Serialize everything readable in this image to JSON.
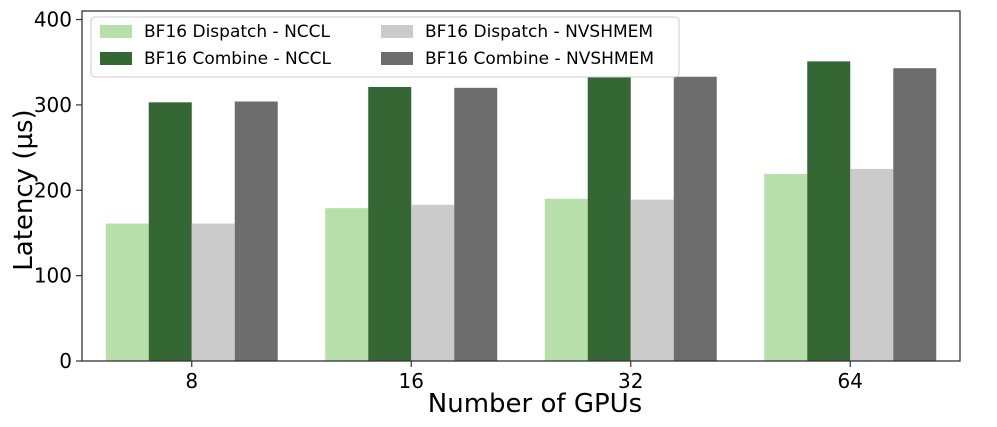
{
  "chart_data": {
    "type": "bar",
    "xlabel": "Number of GPUs",
    "ylabel": "Latency (µs)",
    "categories": [
      "8",
      "16",
      "32",
      "64"
    ],
    "ylim": [
      0,
      410
    ],
    "yticks": [
      0,
      100,
      200,
      300,
      400
    ],
    "grid": false,
    "legend_position": "top-left",
    "legend_columns": 2,
    "series": [
      {
        "name": "BF16 Dispatch - NCCL",
        "color": "#b7dfa9",
        "values": [
          161,
          179,
          190,
          219
        ]
      },
      {
        "name": "BF16 Combine - NCCL",
        "color": "#356734",
        "values": [
          303,
          321,
          333,
          351
        ]
      },
      {
        "name": "BF16 Dispatch - NVSHMEM",
        "color": "#cbcbcb",
        "values": [
          161,
          183,
          189,
          225
        ]
      },
      {
        "name": "BF16 Combine - NVSHMEM",
        "color": "#6d6d6d",
        "values": [
          304,
          320,
          333,
          343
        ]
      }
    ]
  }
}
